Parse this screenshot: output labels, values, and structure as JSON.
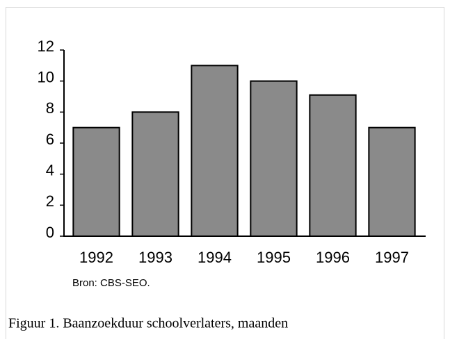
{
  "chart_data": {
    "type": "bar",
    "categories": [
      "1992",
      "1993",
      "1994",
      "1995",
      "1996",
      "1997"
    ],
    "values": [
      7,
      8,
      11,
      10,
      9.1,
      7
    ],
    "color": "#8a8a8a",
    "ylim": [
      0,
      12
    ],
    "yticks": [
      0,
      2,
      4,
      6,
      8,
      10,
      12
    ],
    "source": "Bron: CBS-SEO.",
    "caption": "Figuur 1. Baanzoekduur schoolverlaters, maanden"
  }
}
